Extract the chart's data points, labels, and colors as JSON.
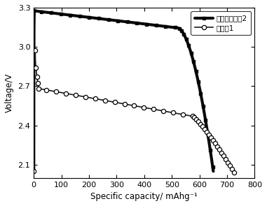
{
  "xlabel": "Specific capacity/ mAhg⁻¹",
  "ylabel": "Voltage/V",
  "xlim": [
    0,
    800
  ],
  "ylim": [
    2.0,
    3.3
  ],
  "xticks": [
    0,
    100,
    200,
    300,
    400,
    500,
    600,
    700,
    800
  ],
  "yticks": [
    2.1,
    2.4,
    2.7,
    3.0,
    3.3
  ],
  "legend1": "高电压氟化碃2",
  "legend2": "对比例1",
  "line1_color": "#0a0a0a",
  "line2_color": "#1a1a1a",
  "background_color": "#ffffff"
}
